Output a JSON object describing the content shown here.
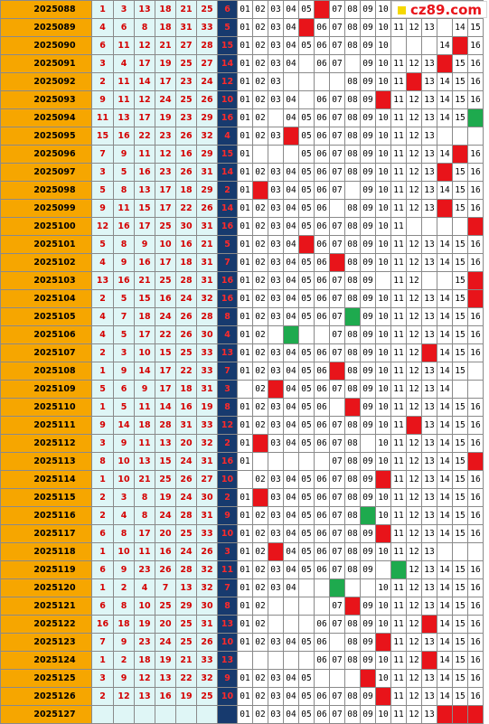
{
  "watermark": "cz89.com",
  "colors": {
    "issue_bg": "#f6a600",
    "red_text": "#d40000",
    "blue_col": "#173a6e",
    "hit_red": "#e8141a",
    "hit_green": "#1eaa4e"
  },
  "rows": [
    {
      "issue": "2025088",
      "reds": [
        "1",
        "3",
        "13",
        "18",
        "21",
        "25"
      ],
      "blue": "6",
      "tail": [
        "01",
        "02",
        "03",
        "04",
        "05",
        "",
        "07",
        "08",
        "09",
        "10",
        "",
        "",
        "",
        "",
        "",
        ""
      ],
      "hits": {
        "5": "r"
      }
    },
    {
      "issue": "2025089",
      "reds": [
        "4",
        "6",
        "8",
        "18",
        "31",
        "33"
      ],
      "blue": "5",
      "tail": [
        "01",
        "02",
        "03",
        "04",
        "",
        "06",
        "07",
        "08",
        "09",
        "10",
        "11",
        "12",
        "13",
        "",
        "14",
        "15"
      ],
      "hits": {
        "4": "r"
      }
    },
    {
      "issue": "2025090",
      "reds": [
        "6",
        "11",
        "12",
        "21",
        "27",
        "28"
      ],
      "blue": "15",
      "tail": [
        "01",
        "02",
        "03",
        "04",
        "05",
        "06",
        "07",
        "08",
        "09",
        "10",
        "",
        "",
        "",
        "14",
        "",
        "16"
      ],
      "hits": {
        "14": "r"
      }
    },
    {
      "issue": "2025091",
      "reds": [
        "3",
        "4",
        "17",
        "19",
        "25",
        "27"
      ],
      "blue": "14",
      "tail": [
        "01",
        "02",
        "03",
        "04",
        "",
        "06",
        "07",
        "",
        "09",
        "10",
        "11",
        "12",
        "13",
        "",
        "15",
        "16"
      ],
      "hits": {
        "13": "r"
      }
    },
    {
      "issue": "2025092",
      "reds": [
        "2",
        "11",
        "14",
        "17",
        "23",
        "24"
      ],
      "blue": "12",
      "tail": [
        "01",
        "02",
        "03",
        "",
        "",
        "",
        "",
        "08",
        "09",
        "10",
        "11",
        "",
        "13",
        "14",
        "15",
        "16"
      ],
      "hits": {
        "11": "r"
      }
    },
    {
      "issue": "2025093",
      "reds": [
        "9",
        "11",
        "12",
        "24",
        "25",
        "26"
      ],
      "blue": "10",
      "tail": [
        "01",
        "02",
        "03",
        "04",
        "",
        "06",
        "07",
        "08",
        "09",
        "",
        "11",
        "12",
        "13",
        "14",
        "15",
        "16"
      ],
      "hits": {
        "9": "r"
      }
    },
    {
      "issue": "2025094",
      "reds": [
        "11",
        "13",
        "17",
        "19",
        "23",
        "29"
      ],
      "blue": "16",
      "tail": [
        "01",
        "02",
        "",
        "04",
        "05",
        "06",
        "07",
        "08",
        "09",
        "10",
        "11",
        "12",
        "13",
        "14",
        "15",
        ""
      ],
      "hits": {
        "15": "g"
      }
    },
    {
      "issue": "2025095",
      "reds": [
        "15",
        "16",
        "22",
        "23",
        "26",
        "32"
      ],
      "blue": "4",
      "tail": [
        "01",
        "02",
        "03",
        "",
        "05",
        "06",
        "07",
        "08",
        "09",
        "10",
        "11",
        "12",
        "13",
        "",
        "",
        ""
      ],
      "hits": {
        "3": "r"
      }
    },
    {
      "issue": "2025096",
      "reds": [
        "7",
        "9",
        "11",
        "12",
        "16",
        "29"
      ],
      "blue": "15",
      "tail": [
        "01",
        "",
        "",
        "",
        "05",
        "06",
        "07",
        "08",
        "09",
        "10",
        "11",
        "12",
        "13",
        "14",
        "",
        "16"
      ],
      "hits": {
        "14": "r"
      }
    },
    {
      "issue": "2025097",
      "reds": [
        "3",
        "5",
        "16",
        "23",
        "26",
        "31"
      ],
      "blue": "14",
      "tail": [
        "01",
        "02",
        "03",
        "04",
        "05",
        "06",
        "07",
        "08",
        "09",
        "10",
        "11",
        "12",
        "13",
        "",
        "15",
        "16"
      ],
      "hits": {
        "13": "r"
      }
    },
    {
      "issue": "2025098",
      "reds": [
        "5",
        "8",
        "13",
        "17",
        "18",
        "29"
      ],
      "blue": "2",
      "tail": [
        "01",
        "",
        "03",
        "04",
        "05",
        "06",
        "07",
        "",
        "09",
        "10",
        "11",
        "12",
        "13",
        "14",
        "15",
        "16"
      ],
      "hits": {
        "1": "r"
      }
    },
    {
      "issue": "2025099",
      "reds": [
        "9",
        "11",
        "15",
        "17",
        "22",
        "26"
      ],
      "blue": "14",
      "tail": [
        "01",
        "02",
        "03",
        "04",
        "05",
        "06",
        "",
        "08",
        "09",
        "10",
        "11",
        "12",
        "13",
        "",
        "15",
        "16"
      ],
      "hits": {
        "13": "r"
      }
    },
    {
      "issue": "2025100",
      "reds": [
        "12",
        "16",
        "17",
        "25",
        "30",
        "31"
      ],
      "blue": "16",
      "tail": [
        "01",
        "02",
        "03",
        "04",
        "05",
        "06",
        "07",
        "08",
        "09",
        "10",
        "11",
        "",
        "",
        "",
        "",
        ""
      ],
      "hits": {
        "15": "r"
      }
    },
    {
      "issue": "2025101",
      "reds": [
        "5",
        "8",
        "9",
        "10",
        "16",
        "21"
      ],
      "blue": "5",
      "tail": [
        "01",
        "02",
        "03",
        "04",
        "",
        "06",
        "07",
        "08",
        "09",
        "10",
        "11",
        "12",
        "13",
        "14",
        "15",
        "16"
      ],
      "hits": {
        "4": "r"
      }
    },
    {
      "issue": "2025102",
      "reds": [
        "4",
        "9",
        "16",
        "17",
        "18",
        "31"
      ],
      "blue": "7",
      "tail": [
        "01",
        "02",
        "03",
        "04",
        "05",
        "06",
        "",
        "08",
        "09",
        "10",
        "11",
        "12",
        "13",
        "14",
        "15",
        "16"
      ],
      "hits": {
        "6": "r"
      }
    },
    {
      "issue": "2025103",
      "reds": [
        "13",
        "16",
        "21",
        "25",
        "28",
        "31"
      ],
      "blue": "16",
      "tail": [
        "01",
        "02",
        "03",
        "04",
        "05",
        "06",
        "07",
        "08",
        "09",
        "",
        "11",
        "12",
        "",
        "",
        "15",
        ""
      ],
      "hits": {
        "15": "r"
      }
    },
    {
      "issue": "2025104",
      "reds": [
        "2",
        "5",
        "15",
        "16",
        "24",
        "32"
      ],
      "blue": "16",
      "tail": [
        "01",
        "02",
        "03",
        "04",
        "05",
        "06",
        "07",
        "08",
        "09",
        "10",
        "11",
        "12",
        "13",
        "14",
        "15",
        ""
      ],
      "hits": {
        "15": "r"
      }
    },
    {
      "issue": "2025105",
      "reds": [
        "4",
        "7",
        "18",
        "24",
        "26",
        "28"
      ],
      "blue": "8",
      "tail": [
        "01",
        "02",
        "03",
        "04",
        "05",
        "06",
        "07",
        "",
        "09",
        "10",
        "11",
        "12",
        "13",
        "14",
        "15",
        "16"
      ],
      "hits": {
        "7": "g"
      }
    },
    {
      "issue": "2025106",
      "reds": [
        "4",
        "5",
        "17",
        "22",
        "26",
        "30"
      ],
      "blue": "4",
      "tail": [
        "01",
        "02",
        "",
        "",
        "",
        "",
        "07",
        "08",
        "09",
        "10",
        "11",
        "12",
        "13",
        "14",
        "15",
        "16"
      ],
      "hits": {
        "3": "g"
      }
    },
    {
      "issue": "2025107",
      "reds": [
        "2",
        "3",
        "10",
        "15",
        "25",
        "33"
      ],
      "blue": "13",
      "tail": [
        "01",
        "02",
        "03",
        "04",
        "05",
        "06",
        "07",
        "08",
        "09",
        "10",
        "11",
        "12",
        "",
        "14",
        "15",
        "16"
      ],
      "hits": {
        "12": "r"
      }
    },
    {
      "issue": "2025108",
      "reds": [
        "1",
        "9",
        "14",
        "17",
        "22",
        "33"
      ],
      "blue": "7",
      "tail": [
        "01",
        "02",
        "03",
        "04",
        "05",
        "06",
        "",
        "08",
        "09",
        "10",
        "11",
        "12",
        "13",
        "14",
        "15",
        ""
      ],
      "hits": {
        "6": "r"
      }
    },
    {
      "issue": "2025109",
      "reds": [
        "5",
        "6",
        "9",
        "17",
        "18",
        "31"
      ],
      "blue": "3",
      "tail": [
        "",
        "02",
        "",
        "04",
        "05",
        "06",
        "07",
        "08",
        "09",
        "10",
        "11",
        "12",
        "13",
        "14",
        "",
        ""
      ],
      "hits": {
        "2": "r"
      }
    },
    {
      "issue": "2025110",
      "reds": [
        "1",
        "5",
        "11",
        "14",
        "16",
        "19"
      ],
      "blue": "8",
      "tail": [
        "01",
        "02",
        "03",
        "04",
        "05",
        "06",
        "",
        "",
        "09",
        "10",
        "11",
        "12",
        "13",
        "14",
        "15",
        "16"
      ],
      "hits": {
        "7": "r"
      }
    },
    {
      "issue": "2025111",
      "reds": [
        "9",
        "14",
        "18",
        "28",
        "31",
        "33"
      ],
      "blue": "12",
      "tail": [
        "01",
        "02",
        "03",
        "04",
        "05",
        "06",
        "07",
        "08",
        "09",
        "10",
        "11",
        "",
        "13",
        "14",
        "15",
        "16"
      ],
      "hits": {
        "11": "r"
      }
    },
    {
      "issue": "2025112",
      "reds": [
        "3",
        "9",
        "11",
        "13",
        "20",
        "32"
      ],
      "blue": "2",
      "tail": [
        "01",
        "",
        "03",
        "04",
        "05",
        "06",
        "07",
        "08",
        "",
        "10",
        "11",
        "12",
        "13",
        "14",
        "15",
        "16"
      ],
      "hits": {
        "1": "r"
      }
    },
    {
      "issue": "2025113",
      "reds": [
        "8",
        "10",
        "13",
        "15",
        "24",
        "31"
      ],
      "blue": "16",
      "tail": [
        "01",
        "",
        "",
        "",
        "",
        "",
        "07",
        "08",
        "09",
        "10",
        "11",
        "12",
        "13",
        "14",
        "15",
        ""
      ],
      "hits": {
        "15": "r"
      }
    },
    {
      "issue": "2025114",
      "reds": [
        "1",
        "10",
        "21",
        "25",
        "26",
        "27"
      ],
      "blue": "10",
      "tail": [
        "",
        "02",
        "03",
        "04",
        "05",
        "06",
        "07",
        "08",
        "09",
        "",
        "11",
        "12",
        "13",
        "14",
        "15",
        "16"
      ],
      "hits": {
        "9": "r"
      }
    },
    {
      "issue": "2025115",
      "reds": [
        "2",
        "3",
        "8",
        "19",
        "24",
        "30"
      ],
      "blue": "2",
      "tail": [
        "01",
        "",
        "03",
        "04",
        "05",
        "06",
        "07",
        "08",
        "09",
        "10",
        "11",
        "12",
        "13",
        "14",
        "15",
        "16"
      ],
      "hits": {
        "1": "r"
      }
    },
    {
      "issue": "2025116",
      "reds": [
        "2",
        "4",
        "8",
        "24",
        "28",
        "31"
      ],
      "blue": "9",
      "tail": [
        "01",
        "02",
        "03",
        "04",
        "05",
        "06",
        "07",
        "08",
        "",
        "10",
        "11",
        "12",
        "13",
        "14",
        "15",
        "16"
      ],
      "hits": {
        "8": "g"
      }
    },
    {
      "issue": "2025117",
      "reds": [
        "6",
        "8",
        "17",
        "20",
        "25",
        "33"
      ],
      "blue": "10",
      "tail": [
        "01",
        "02",
        "03",
        "04",
        "05",
        "06",
        "07",
        "08",
        "09",
        "",
        "11",
        "12",
        "13",
        "14",
        "15",
        "16"
      ],
      "hits": {
        "9": "r"
      }
    },
    {
      "issue": "2025118",
      "reds": [
        "1",
        "10",
        "11",
        "16",
        "24",
        "26"
      ],
      "blue": "3",
      "tail": [
        "01",
        "02",
        "",
        "04",
        "05",
        "06",
        "07",
        "08",
        "09",
        "10",
        "11",
        "12",
        "13",
        "",
        "",
        ""
      ],
      "hits": {
        "2": "r"
      }
    },
    {
      "issue": "2025119",
      "reds": [
        "6",
        "9",
        "23",
        "26",
        "28",
        "32"
      ],
      "blue": "11",
      "tail": [
        "01",
        "02",
        "03",
        "04",
        "05",
        "06",
        "07",
        "08",
        "09",
        "",
        "",
        "12",
        "13",
        "14",
        "15",
        "16"
      ],
      "hits": {
        "10": "g"
      }
    },
    {
      "issue": "2025120",
      "reds": [
        "1",
        "2",
        "4",
        "7",
        "13",
        "32"
      ],
      "blue": "7",
      "tail": [
        "01",
        "02",
        "03",
        "04",
        "",
        "",
        "",
        "",
        "",
        "10",
        "11",
        "12",
        "13",
        "14",
        "15",
        "16"
      ],
      "hits": {
        "6": "g"
      }
    },
    {
      "issue": "2025121",
      "reds": [
        "6",
        "8",
        "10",
        "25",
        "29",
        "30"
      ],
      "blue": "8",
      "tail": [
        "01",
        "02",
        "",
        "",
        "",
        "",
        "07",
        "",
        "09",
        "10",
        "11",
        "12",
        "13",
        "14",
        "15",
        "16"
      ],
      "hits": {
        "7": "r"
      }
    },
    {
      "issue": "2025122",
      "reds": [
        "16",
        "18",
        "19",
        "20",
        "25",
        "31"
      ],
      "blue": "13",
      "tail": [
        "01",
        "02",
        "",
        "",
        "",
        "06",
        "07",
        "08",
        "09",
        "10",
        "11",
        "12",
        "",
        "14",
        "15",
        "16"
      ],
      "hits": {
        "12": "r"
      }
    },
    {
      "issue": "2025123",
      "reds": [
        "7",
        "9",
        "23",
        "24",
        "25",
        "26"
      ],
      "blue": "10",
      "tail": [
        "01",
        "02",
        "03",
        "04",
        "05",
        "06",
        "",
        "08",
        "09",
        "",
        "11",
        "12",
        "13",
        "14",
        "15",
        "16"
      ],
      "hits": {
        "9": "r"
      }
    },
    {
      "issue": "2025124",
      "reds": [
        "1",
        "2",
        "18",
        "19",
        "21",
        "33"
      ],
      "blue": "13",
      "tail": [
        "",
        "",
        "",
        "",
        "",
        "06",
        "07",
        "08",
        "09",
        "10",
        "11",
        "12",
        "",
        "14",
        "15",
        "16"
      ],
      "hits": {
        "12": "r"
      }
    },
    {
      "issue": "2025125",
      "reds": [
        "3",
        "9",
        "12",
        "13",
        "22",
        "32"
      ],
      "blue": "9",
      "tail": [
        "01",
        "02",
        "03",
        "04",
        "05",
        "",
        "",
        "",
        "",
        "10",
        "11",
        "12",
        "13",
        "14",
        "15",
        "16"
      ],
      "hits": {
        "8": "r"
      }
    },
    {
      "issue": "2025126",
      "reds": [
        "2",
        "12",
        "13",
        "16",
        "19",
        "25"
      ],
      "blue": "10",
      "tail": [
        "01",
        "02",
        "03",
        "04",
        "05",
        "06",
        "07",
        "08",
        "09",
        "",
        "11",
        "12",
        "13",
        "14",
        "15",
        "16"
      ],
      "hits": {
        "9": "r"
      }
    },
    {
      "issue": "2025127",
      "reds": [
        "",
        "",
        "",
        "",
        "",
        ""
      ],
      "blue": "",
      "tail": [
        "01",
        "02",
        "03",
        "04",
        "05",
        "06",
        "07",
        "08",
        "09",
        "10",
        "11",
        "12",
        "13",
        "",
        "",
        ""
      ],
      "hits": {
        "13": "r",
        "14": "r",
        "15": "r"
      }
    }
  ]
}
